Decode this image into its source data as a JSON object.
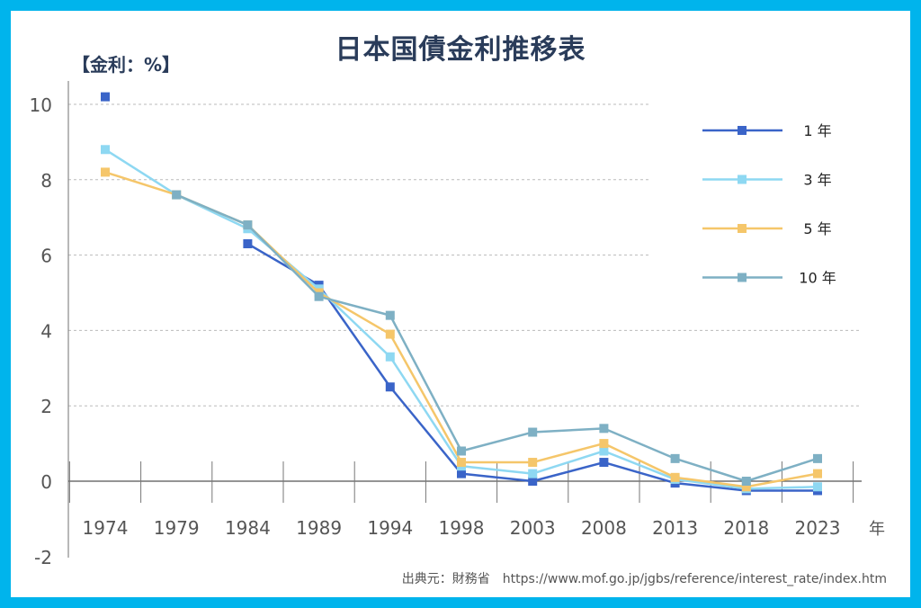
{
  "title": "日本国債金利推移表",
  "unit_label": "【金利：%】",
  "x_unit": "年",
  "source": {
    "label": "出典元：財務省",
    "url": "https://www.mof.go.jp/jgbs/reference/interest_rate/index.htm"
  },
  "chart_data": {
    "type": "line",
    "title": "日本国債金利推移表",
    "ylabel": "【金利：%】",
    "xlabel": "年",
    "categories": [
      "1974",
      "1979",
      "1984",
      "1989",
      "1994",
      "1998",
      "2003",
      "2008",
      "2013",
      "2018",
      "2023"
    ],
    "ylim": [
      -2,
      10
    ],
    "yticks": [
      "-2",
      "0",
      "2",
      "4",
      "6",
      "8",
      "10"
    ],
    "grid": true,
    "legend_position": "top-right",
    "series": [
      {
        "name": "1 年",
        "color": "#3A64C8",
        "values": [
          10.2,
          null,
          6.3,
          5.2,
          2.5,
          0.2,
          0.0,
          0.5,
          -0.05,
          -0.25,
          -0.25
        ]
      },
      {
        "name": "3 年",
        "color": "#8ED8F2",
        "values": [
          8.8,
          7.6,
          6.7,
          5.1,
          3.3,
          0.4,
          0.2,
          0.8,
          0.05,
          -0.2,
          -0.15
        ]
      },
      {
        "name": "5 年",
        "color": "#F5C66A",
        "values": [
          8.2,
          7.6,
          6.8,
          5.0,
          3.9,
          0.5,
          0.5,
          1.0,
          0.1,
          -0.15,
          0.2
        ]
      },
      {
        "name": "10 年",
        "color": "#7EB0C4",
        "values": [
          null,
          7.6,
          6.8,
          4.9,
          4.4,
          0.8,
          1.3,
          1.4,
          0.6,
          0.0,
          0.6
        ]
      }
    ]
  }
}
